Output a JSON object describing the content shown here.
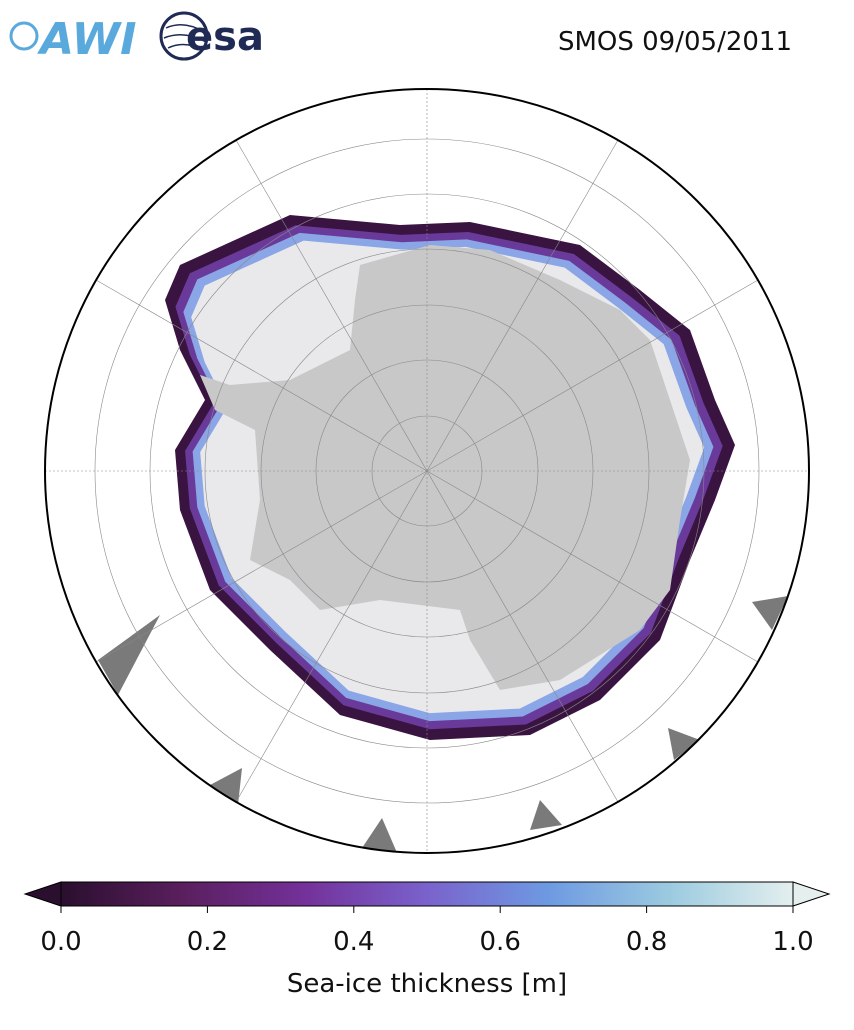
{
  "header": {
    "title": "SMOS 09/05/2011",
    "logos": [
      "AWI",
      "esa"
    ]
  },
  "colorbar": {
    "label": "Sea-ice thickness [m]",
    "lim": [
      0,
      1
    ],
    "ticks": [
      {
        "value": 0,
        "label": "0.0"
      },
      {
        "value": 0.2,
        "label": "0.2"
      },
      {
        "value": 0.4,
        "label": "0.4"
      },
      {
        "value": 0.6,
        "label": "0.6"
      },
      {
        "value": 0.8,
        "label": "0.8"
      },
      {
        "value": 1,
        "label": "1.0"
      }
    ],
    "colors": [
      "#2a0f2e",
      "#5a1f5e",
      "#74319a",
      "#7a62cc",
      "#6e9ae2",
      "#9ccbe0",
      "#e4efee"
    ]
  }
}
